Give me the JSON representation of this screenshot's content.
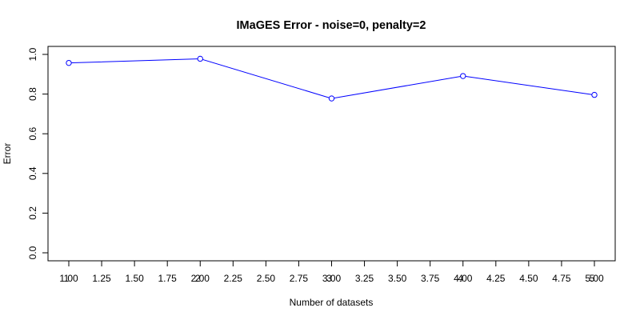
{
  "chart_data": {
    "type": "line",
    "title": "IMaGES Error - noise=0, penalty=2",
    "xlabel": "Number of datasets",
    "ylabel": "Error",
    "xlim": [
      1,
      5
    ],
    "ylim": [
      0,
      1
    ],
    "grid": false,
    "legend": "none",
    "x_tick_values": [
      1.0,
      1.25,
      1.5,
      1.75,
      2.0,
      2.25,
      2.5,
      2.75,
      3.0,
      3.25,
      3.5,
      3.75,
      4.0,
      4.25,
      4.5,
      4.75,
      5.0
    ],
    "x_tick_labels": [
      "1.00",
      "1.25",
      "1.50",
      "1.75",
      "2.00",
      "2.25",
      "2.50",
      "2.75",
      "3.00",
      "3.25",
      "3.50",
      "3.75",
      "4.00",
      "4.25",
      "4.50",
      "4.75",
      "5.00"
    ],
    "x_overlay_values": [
      1,
      2,
      3,
      4,
      5
    ],
    "x_overlay_labels": [
      "1",
      "2",
      "3",
      "4",
      "5"
    ],
    "y_tick_values": [
      0.0,
      0.2,
      0.4,
      0.6,
      0.8,
      1.0
    ],
    "y_tick_labels": [
      "0.0",
      "0.2",
      "0.4",
      "0.6",
      "0.8",
      "1.0"
    ],
    "series": [
      {
        "x": [
          1,
          2,
          3,
          4,
          5
        ],
        "values": [
          0.957,
          0.978,
          0.778,
          0.891,
          0.796
        ],
        "color": "#0000ff",
        "marker": "open-circle"
      }
    ]
  }
}
